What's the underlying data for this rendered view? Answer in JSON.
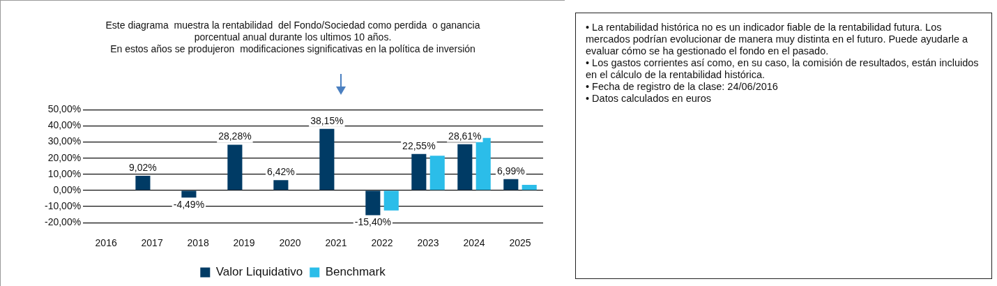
{
  "chart_data": [
    {
      "type": "bar",
      "title": "Este diagrama  muestra la rentabilidad  del Fondo/Sociedad como perdida  o ganancia\nporcentual anual durante los ultimos 10 años.\nEn estos años se produjeron  modificaciones significativas en la política de inversión",
      "categories": [
        "2016",
        "2017",
        "2018",
        "2019",
        "2020",
        "2021",
        "2022",
        "2023",
        "2024",
        "2025"
      ],
      "series": [
        {
          "name": "Valor Liquidativo",
          "color": "#003b65",
          "values": [
            null,
            9.02,
            -4.49,
            28.28,
            6.42,
            38.15,
            -15.4,
            22.55,
            28.61,
            6.99
          ],
          "value_labels": [
            null,
            "9,02%",
            "-4,49%",
            "28,28%",
            "6,42%",
            "38,15%",
            "-15,40%",
            "22,55%",
            "28,61%",
            "6,99%"
          ]
        },
        {
          "name": "Benchmark",
          "color": "#2bbde9",
          "values": [
            null,
            null,
            null,
            null,
            null,
            null,
            -12.5,
            21.5,
            32.5,
            3.5
          ]
        }
      ],
      "ylim": [
        -20,
        50
      ],
      "yticks": [
        {
          "value": -20,
          "label": "-20,00%"
        },
        {
          "value": -10,
          "label": "-10,00%"
        },
        {
          "value": 0,
          "label": "0,00%"
        },
        {
          "value": 10,
          "label": "10,00%"
        },
        {
          "value": 20,
          "label": "20,00%"
        },
        {
          "value": 30,
          "label": "30,00%"
        },
        {
          "value": 40,
          "label": "40,00%"
        },
        {
          "value": 50,
          "label": "50,00%"
        }
      ],
      "grid": "y",
      "legend": "bottom"
    },
    {
      "type": "other",
      "annotations": [
        "• La rentabilidad  histórica no es un indicador  fiable de la rentabilidad  futura. Los mercados podrían evolucionar de manera muy distinta en el futuro. Puede ayudarle a evaluar cómo se ha gestionado el fondo en el pasado.",
        "• Los gastos corrientes así como, en su caso, la comisión de resultados, están incluidos en el cálculo de la rentabilidad  histórica.",
        "• Fecha de registro de la clase: 24/06/2016",
        "• Datos calculados en euros"
      ]
    }
  ]
}
